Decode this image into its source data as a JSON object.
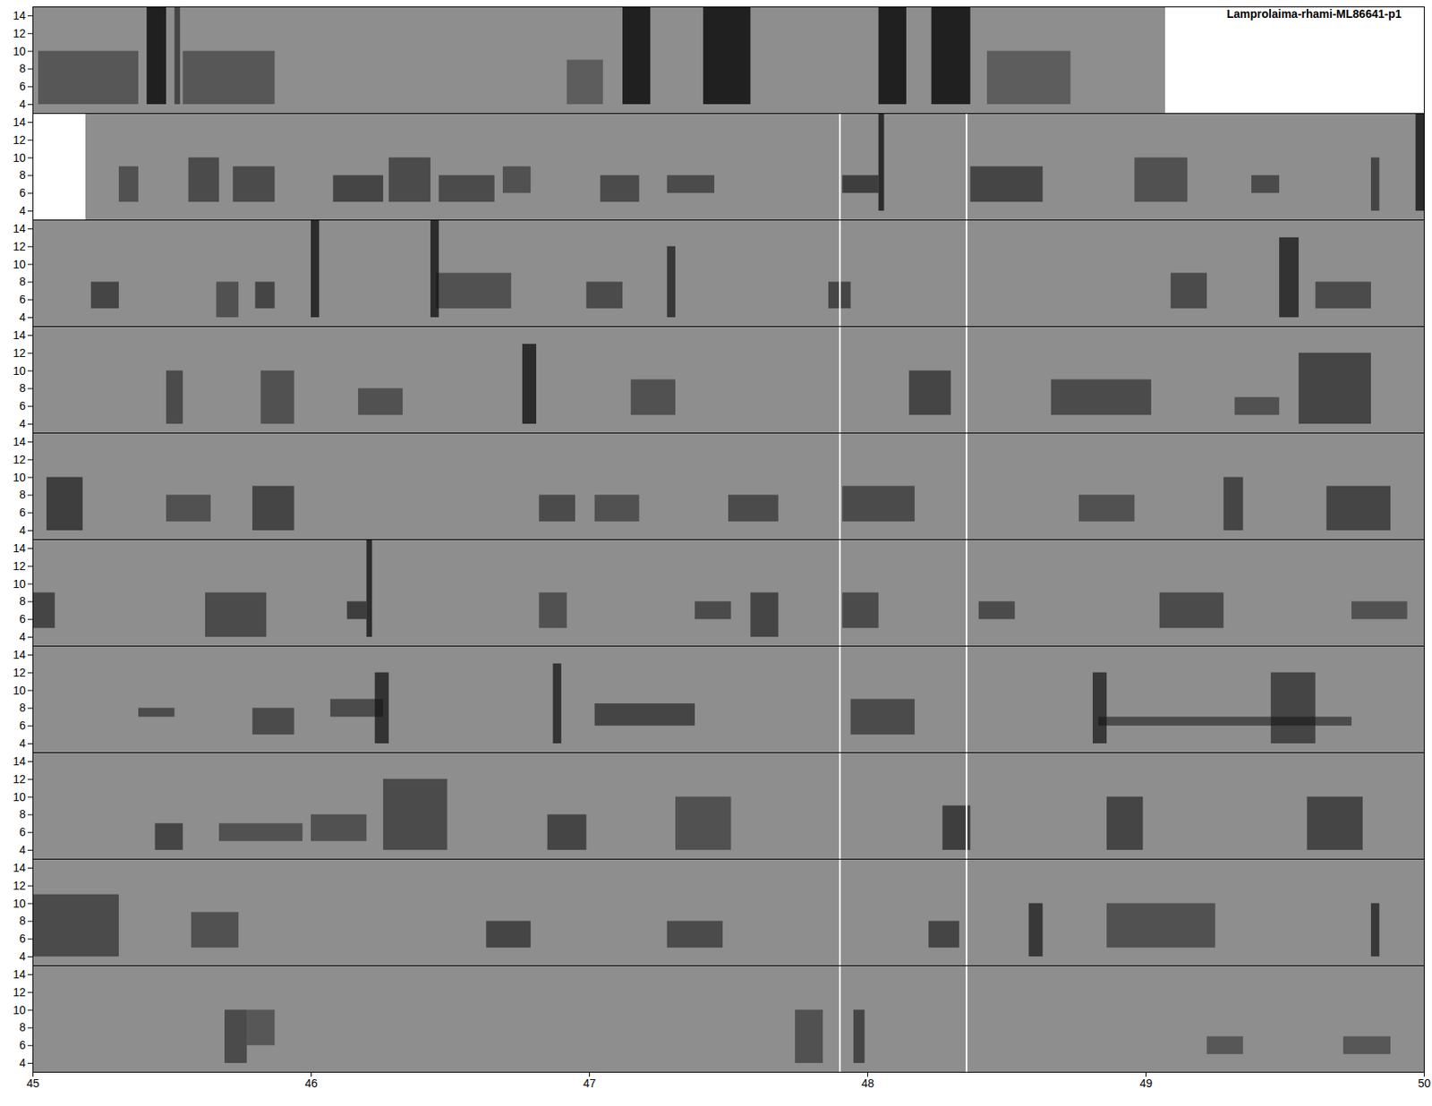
{
  "chart_data": {
    "type": "spectrogram",
    "title": "Lamprolaima-rhami-ML86641-p1",
    "xlim": [
      45,
      50
    ],
    "xticks": [
      45,
      46,
      47,
      48,
      49,
      50
    ],
    "ylim": [
      3,
      15
    ],
    "yticks": [
      4,
      6,
      8,
      10,
      12,
      14
    ],
    "panels": [
      {
        "blank": [
          49.07,
          50
        ],
        "lines": [],
        "blobs": [
          [
            45.02,
            45.38,
            4,
            10,
            0.45
          ],
          [
            45.41,
            45.48,
            4,
            15,
            0.9
          ],
          [
            45.51,
            45.53,
            4,
            15,
            0.6
          ],
          [
            45.54,
            45.87,
            4,
            10,
            0.45
          ],
          [
            46.92,
            47.05,
            4,
            9,
            0.4
          ],
          [
            47.12,
            47.22,
            4,
            15,
            0.9
          ],
          [
            47.41,
            47.58,
            4,
            15,
            0.9
          ],
          [
            48.04,
            48.14,
            4,
            15,
            0.9
          ],
          [
            48.23,
            48.37,
            4,
            15,
            0.9
          ],
          [
            48.43,
            48.73,
            4,
            10,
            0.4
          ]
        ]
      },
      {
        "blank": [
          45,
          45.19
        ],
        "lines": [
          47.9,
          48.355
        ],
        "blobs": [
          [
            45.31,
            45.38,
            5,
            9,
            0.5
          ],
          [
            45.56,
            45.67,
            5,
            10,
            0.55
          ],
          [
            45.72,
            45.87,
            5,
            9,
            0.55
          ],
          [
            46.08,
            46.26,
            5,
            8,
            0.6
          ],
          [
            46.28,
            46.43,
            5,
            10,
            0.55
          ],
          [
            46.46,
            46.66,
            5,
            8,
            0.55
          ],
          [
            46.69,
            46.79,
            6,
            9,
            0.5
          ],
          [
            47.04,
            47.18,
            5,
            8,
            0.55
          ],
          [
            47.28,
            47.45,
            6,
            8,
            0.55
          ],
          [
            47.91,
            48.04,
            6,
            8,
            0.65
          ],
          [
            48.04,
            48.06,
            4,
            15,
            0.8
          ],
          [
            48.37,
            48.63,
            5,
            9,
            0.6
          ],
          [
            48.96,
            49.15,
            5,
            10,
            0.5
          ],
          [
            49.38,
            49.48,
            6,
            8,
            0.55
          ],
          [
            49.81,
            49.84,
            4,
            10,
            0.6
          ],
          [
            49.97,
            50,
            4,
            15,
            0.8
          ]
        ]
      },
      {
        "lines": [
          47.9,
          48.355
        ],
        "blobs": [
          [
            45.21,
            45.31,
            5,
            8,
            0.6
          ],
          [
            45.66,
            45.74,
            4,
            8,
            0.5
          ],
          [
            45.8,
            45.87,
            5,
            8,
            0.6
          ],
          [
            46.0,
            46.03,
            4,
            15,
            0.8
          ],
          [
            46.43,
            46.46,
            4,
            15,
            0.8
          ],
          [
            46.45,
            46.72,
            5,
            9,
            0.5
          ],
          [
            46.99,
            47.12,
            5,
            8,
            0.55
          ],
          [
            47.28,
            47.31,
            4,
            12,
            0.7
          ],
          [
            47.86,
            47.94,
            5,
            8,
            0.6
          ],
          [
            49.09,
            49.22,
            5,
            9,
            0.55
          ],
          [
            49.48,
            49.55,
            4,
            13,
            0.75
          ],
          [
            49.61,
            49.81,
            5,
            8,
            0.55
          ]
        ]
      },
      {
        "lines": [
          47.9,
          48.355
        ],
        "blobs": [
          [
            45.48,
            45.54,
            4,
            10,
            0.55
          ],
          [
            45.82,
            45.94,
            4,
            10,
            0.5
          ],
          [
            46.17,
            46.33,
            5,
            8,
            0.5
          ],
          [
            46.76,
            46.81,
            4,
            13,
            0.8
          ],
          [
            47.15,
            47.31,
            5,
            9,
            0.5
          ],
          [
            48.15,
            48.3,
            5,
            10,
            0.6
          ],
          [
            48.66,
            49.02,
            5,
            9,
            0.55
          ],
          [
            49.32,
            49.48,
            5,
            7,
            0.5
          ],
          [
            49.55,
            49.81,
            4,
            12,
            0.6
          ]
        ]
      },
      {
        "lines": [
          47.9,
          48.355
        ],
        "blobs": [
          [
            45.05,
            45.18,
            4,
            10,
            0.65
          ],
          [
            45.48,
            45.64,
            5,
            8,
            0.5
          ],
          [
            45.79,
            45.94,
            4,
            9,
            0.6
          ],
          [
            46.82,
            46.95,
            5,
            8,
            0.55
          ],
          [
            47.02,
            47.18,
            5,
            8,
            0.5
          ],
          [
            47.5,
            47.68,
            5,
            8,
            0.55
          ],
          [
            47.91,
            48.17,
            5,
            9,
            0.55
          ],
          [
            48.76,
            48.96,
            5,
            8,
            0.5
          ],
          [
            49.28,
            49.35,
            4,
            10,
            0.6
          ],
          [
            49.65,
            49.88,
            4,
            9,
            0.6
          ]
        ]
      },
      {
        "lines": [
          47.9,
          48.355
        ],
        "blobs": [
          [
            45,
            45.08,
            5,
            9,
            0.6
          ],
          [
            45.62,
            45.84,
            4,
            9,
            0.55
          ],
          [
            46.13,
            46.2,
            6,
            8,
            0.65
          ],
          [
            46.2,
            46.22,
            4,
            15,
            0.8
          ],
          [
            46.82,
            46.92,
            5,
            9,
            0.5
          ],
          [
            47.38,
            47.51,
            6,
            8,
            0.55
          ],
          [
            47.58,
            47.68,
            4,
            9,
            0.6
          ],
          [
            47.91,
            48.04,
            5,
            9,
            0.55
          ],
          [
            48.4,
            48.53,
            6,
            8,
            0.55
          ],
          [
            49.05,
            49.28,
            5,
            9,
            0.55
          ],
          [
            49.74,
            49.94,
            6,
            8,
            0.5
          ]
        ]
      },
      {
        "lines": [
          47.9,
          48.355
        ],
        "blobs": [
          [
            45.38,
            45.51,
            7,
            8,
            0.55
          ],
          [
            45.79,
            45.94,
            5,
            8,
            0.55
          ],
          [
            46.07,
            46.26,
            7,
            9,
            0.55
          ],
          [
            46.23,
            46.28,
            4,
            12,
            0.75
          ],
          [
            46.87,
            46.9,
            4,
            13,
            0.75
          ],
          [
            47.02,
            47.38,
            6,
            8.5,
            0.6
          ],
          [
            47.94,
            48.17,
            5,
            9,
            0.55
          ],
          [
            48.81,
            48.86,
            4,
            12,
            0.7
          ],
          [
            48.83,
            49.74,
            6,
            7,
            0.55
          ],
          [
            49.45,
            49.61,
            4,
            12,
            0.6
          ]
        ]
      },
      {
        "lines": [
          47.9,
          48.355
        ],
        "blobs": [
          [
            45.44,
            45.54,
            4,
            7,
            0.6
          ],
          [
            45.67,
            45.97,
            5,
            7,
            0.5
          ],
          [
            46.0,
            46.2,
            5,
            8,
            0.5
          ],
          [
            46.26,
            46.49,
            4,
            12,
            0.55
          ],
          [
            46.85,
            46.99,
            4,
            8,
            0.6
          ],
          [
            47.31,
            47.51,
            4,
            10,
            0.5
          ],
          [
            48.27,
            48.37,
            4,
            9,
            0.65
          ],
          [
            48.86,
            48.99,
            4,
            10,
            0.6
          ],
          [
            49.58,
            49.78,
            4,
            10,
            0.6
          ]
        ]
      },
      {
        "lines": [
          47.9,
          48.355
        ],
        "blobs": [
          [
            45,
            45.31,
            4,
            11,
            0.55
          ],
          [
            45.57,
            45.74,
            5,
            9,
            0.5
          ],
          [
            46.63,
            46.79,
            5,
            8,
            0.6
          ],
          [
            47.28,
            47.48,
            5,
            8,
            0.55
          ],
          [
            48.22,
            48.33,
            5,
            8,
            0.6
          ],
          [
            48.58,
            48.63,
            4,
            10,
            0.7
          ],
          [
            48.86,
            49.25,
            5,
            10,
            0.5
          ],
          [
            49.81,
            49.84,
            4,
            10,
            0.7
          ]
        ]
      },
      {
        "lines": [
          47.9,
          48.355
        ],
        "blobs": [
          [
            45.69,
            45.77,
            4,
            10,
            0.55
          ],
          [
            45.77,
            45.87,
            6,
            10,
            0.45
          ],
          [
            47.74,
            47.84,
            4,
            10,
            0.5
          ],
          [
            47.95,
            47.99,
            4,
            10,
            0.6
          ],
          [
            49.22,
            49.35,
            5,
            7,
            0.45
          ],
          [
            49.71,
            49.88,
            5,
            7,
            0.45
          ]
        ]
      }
    ]
  }
}
